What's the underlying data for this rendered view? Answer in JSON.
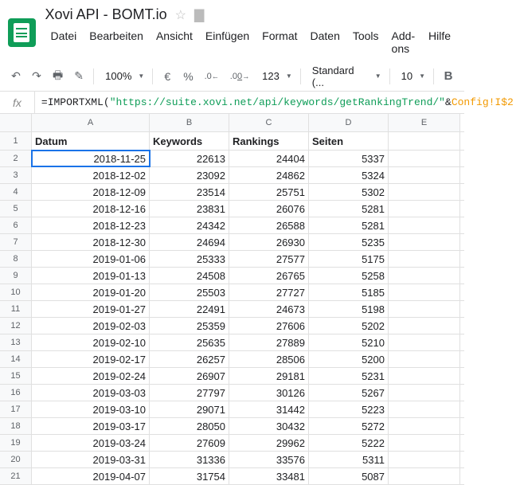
{
  "doc": {
    "title": "Xovi API - BOMT.io"
  },
  "menu": {
    "items": [
      "Datei",
      "Bearbeiten",
      "Ansicht",
      "Einfügen",
      "Format",
      "Daten",
      "Tools",
      "Add-ons",
      "Hilfe"
    ]
  },
  "toolbar": {
    "zoom": "100%",
    "currency": "€",
    "percent": "%",
    "dec_dec": ".0←",
    "dec_inc": ".00→",
    "numfmt": "123",
    "font": "Standard (...",
    "fontsize": "10"
  },
  "formula": {
    "fx": "fx",
    "prefix": "=IMPORTXML(",
    "str": "\"https://suite.xovi.net/api/keywords/getRankingTrend/\"",
    "amp": "&",
    "ref": "Config!I$2"
  },
  "columns": [
    "A",
    "B",
    "C",
    "D",
    "E"
  ],
  "headers": {
    "a": "Datum",
    "b": "Keywords",
    "c": "Rankings",
    "d": "Seiten"
  },
  "rows": [
    {
      "n": "1"
    },
    {
      "n": "2",
      "a": "2018-11-25",
      "b": "22613",
      "c": "24404",
      "d": "5337"
    },
    {
      "n": "3",
      "a": "2018-12-02",
      "b": "23092",
      "c": "24862",
      "d": "5324"
    },
    {
      "n": "4",
      "a": "2018-12-09",
      "b": "23514",
      "c": "25751",
      "d": "5302"
    },
    {
      "n": "5",
      "a": "2018-12-16",
      "b": "23831",
      "c": "26076",
      "d": "5281"
    },
    {
      "n": "6",
      "a": "2018-12-23",
      "b": "24342",
      "c": "26588",
      "d": "5281"
    },
    {
      "n": "7",
      "a": "2018-12-30",
      "b": "24694",
      "c": "26930",
      "d": "5235"
    },
    {
      "n": "8",
      "a": "2019-01-06",
      "b": "25333",
      "c": "27577",
      "d": "5175"
    },
    {
      "n": "9",
      "a": "2019-01-13",
      "b": "24508",
      "c": "26765",
      "d": "5258"
    },
    {
      "n": "10",
      "a": "2019-01-20",
      "b": "25503",
      "c": "27727",
      "d": "5185"
    },
    {
      "n": "11",
      "a": "2019-01-27",
      "b": "22491",
      "c": "24673",
      "d": "5198"
    },
    {
      "n": "12",
      "a": "2019-02-03",
      "b": "25359",
      "c": "27606",
      "d": "5202"
    },
    {
      "n": "13",
      "a": "2019-02-10",
      "b": "25635",
      "c": "27889",
      "d": "5210"
    },
    {
      "n": "14",
      "a": "2019-02-17",
      "b": "26257",
      "c": "28506",
      "d": "5200"
    },
    {
      "n": "15",
      "a": "2019-02-24",
      "b": "26907",
      "c": "29181",
      "d": "5231"
    },
    {
      "n": "16",
      "a": "2019-03-03",
      "b": "27797",
      "c": "30126",
      "d": "5267"
    },
    {
      "n": "17",
      "a": "2019-03-10",
      "b": "29071",
      "c": "31442",
      "d": "5223"
    },
    {
      "n": "18",
      "a": "2019-03-17",
      "b": "28050",
      "c": "30432",
      "d": "5272"
    },
    {
      "n": "19",
      "a": "2019-03-24",
      "b": "27609",
      "c": "29962",
      "d": "5222"
    },
    {
      "n": "20",
      "a": "2019-03-31",
      "b": "31336",
      "c": "33576",
      "d": "5311"
    },
    {
      "n": "21",
      "a": "2019-04-07",
      "b": "31754",
      "c": "33481",
      "d": "5087"
    }
  ],
  "selected_cell": "A2",
  "colors": {
    "brand_green": "#0f9d58",
    "selection_blue": "#1a73e8",
    "grid_border": "#e0e0e0",
    "header_bg": "#f8f9fa",
    "muted_text": "#5f6368",
    "formula_ref": "#f29900"
  }
}
